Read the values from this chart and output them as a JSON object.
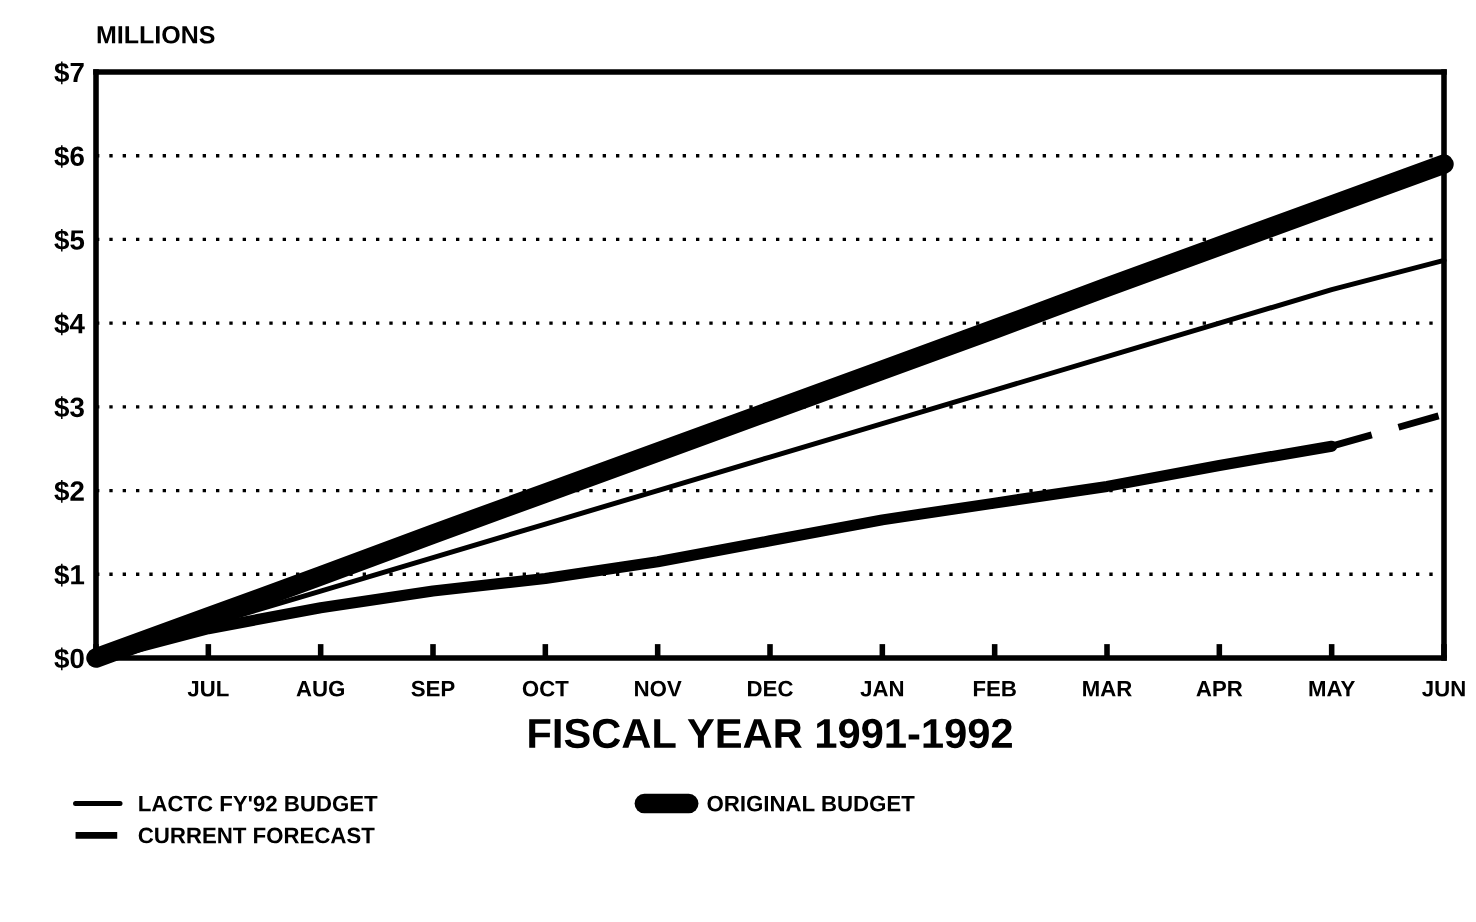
{
  "chart_data": {
    "type": "line",
    "ylabel": "MILLIONS",
    "xlabel": "FISCAL YEAR 1991-1992",
    "categories": [
      null,
      "JUL",
      "AUG",
      "SEP",
      "OCT",
      "NOV",
      "DEC",
      "JAN",
      "FEB",
      "MAR",
      "APR",
      "MAY",
      "JUN"
    ],
    "ylim": [
      0,
      7
    ],
    "yticks": [
      {
        "value": 0,
        "label": "$0"
      },
      {
        "value": 1,
        "label": "$1"
      },
      {
        "value": 2,
        "label": "$2"
      },
      {
        "value": 3,
        "label": "$3"
      },
      {
        "value": 4,
        "label": "$4"
      },
      {
        "value": 5,
        "label": "$5"
      },
      {
        "value": 6,
        "label": "$6"
      },
      {
        "value": 7,
        "label": "$7"
      }
    ],
    "grid": "y",
    "legend": "bottom",
    "marker": "none",
    "series": [
      {
        "name": "LACTC FY'92 BUDGET",
        "color": "#000000",
        "line_style": "solid",
        "values": [
          0,
          0.4,
          0.8,
          1.2,
          1.6,
          2.0,
          2.4,
          2.8,
          3.2,
          3.6,
          4.0,
          4.4,
          4.75
        ]
      },
      {
        "name": "ORIGINAL BUDGET",
        "color": "#000000",
        "line_style": "solid",
        "values": [
          0,
          0.49,
          0.98,
          1.48,
          1.97,
          2.46,
          2.95,
          3.44,
          3.93,
          4.43,
          4.92,
          5.41,
          5.9
        ]
      },
      {
        "color": "#000000",
        "line_style": "solid",
        "values": [
          0,
          0.35,
          0.6,
          0.8,
          0.95,
          1.15,
          1.4,
          1.65,
          1.85,
          2.05,
          2.3,
          2.53,
          null
        ]
      },
      {
        "name": "CURRENT FORECAST",
        "color": "#000000",
        "line_style": "dashed",
        "values": [
          null,
          null,
          null,
          null,
          null,
          null,
          null,
          null,
          null,
          null,
          null,
          2.53,
          2.91
        ]
      }
    ]
  }
}
